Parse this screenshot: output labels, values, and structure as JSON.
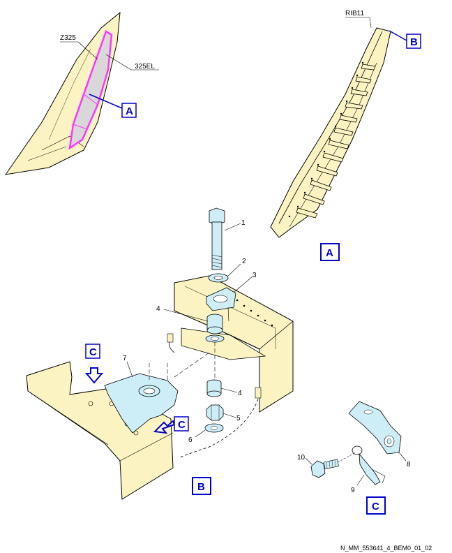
{
  "labels": {
    "z325": "Z325",
    "el325": "325EL",
    "rib11": "RIB11",
    "view_a": "A",
    "view_b": "B",
    "view_c": "C",
    "callout_a": "A",
    "callout_b": "B",
    "callout_c1": "C",
    "callout_c2": "C",
    "arrow_c_label": "C"
  },
  "items": {
    "i1": "1",
    "i2": "2",
    "i3": "3",
    "i4a": "4",
    "i4b": "4",
    "i5": "5",
    "i6": "6",
    "i7": "7",
    "i8": "8",
    "i9": "9",
    "i10": "10"
  },
  "reference": "N_MM_553641_4_BEM0_01_02",
  "colors": {
    "structure": "#fbf4c2",
    "highlight": "#ff33ff",
    "blue": "#0000cc",
    "part": "#cdeef7",
    "ink": "#000000"
  }
}
